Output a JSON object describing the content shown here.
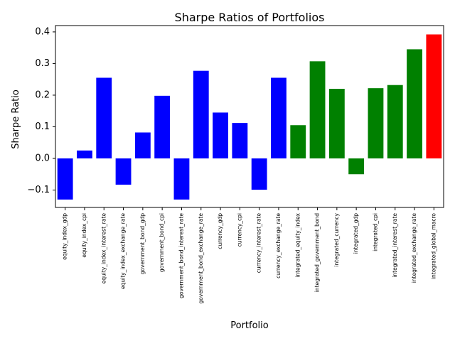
{
  "chart_data": {
    "type": "bar",
    "title": "Sharpe Ratios of Portfolios",
    "xlabel": "Portfolio",
    "ylabel": "Sharpe Ratio",
    "ylim": [
      -0.155,
      0.42
    ],
    "yticks": [
      -0.1,
      0.0,
      0.1,
      0.2,
      0.3,
      0.4
    ],
    "ytick_labels": [
      "−0.1",
      "0.0",
      "0.1",
      "0.2",
      "0.3",
      "0.4"
    ],
    "grid": false,
    "categories": [
      "equity_index_gdp",
      "equity_index_cpi",
      "equity_index_interest_rate",
      "equity_index_exchange_rate",
      "government_bond_gdp",
      "government_bond_cpi",
      "government_bond_interest_rate",
      "government_bond_exchange_rate",
      "currency_gdp",
      "currency_cpi",
      "currency_interest_rate",
      "currency_exchange_rate",
      "integrated_equity_index",
      "integrated_government_bond",
      "integrated_currency",
      "integrated_gdp",
      "integrated_cpi",
      "integrated_interest_rate",
      "integrated_exchange_rate",
      "integrated_global_macro"
    ],
    "values": [
      -0.13,
      0.025,
      0.255,
      -0.083,
      0.082,
      0.198,
      -0.13,
      0.277,
      0.145,
      0.112,
      -0.099,
      0.255,
      0.105,
      0.307,
      0.22,
      -0.05,
      0.222,
      0.232,
      0.345,
      0.392
    ],
    "colors": [
      "#0000ff",
      "#0000ff",
      "#0000ff",
      "#0000ff",
      "#0000ff",
      "#0000ff",
      "#0000ff",
      "#0000ff",
      "#0000ff",
      "#0000ff",
      "#0000ff",
      "#0000ff",
      "#008000",
      "#008000",
      "#008000",
      "#008000",
      "#008000",
      "#008000",
      "#008000",
      "#ff0000"
    ]
  }
}
